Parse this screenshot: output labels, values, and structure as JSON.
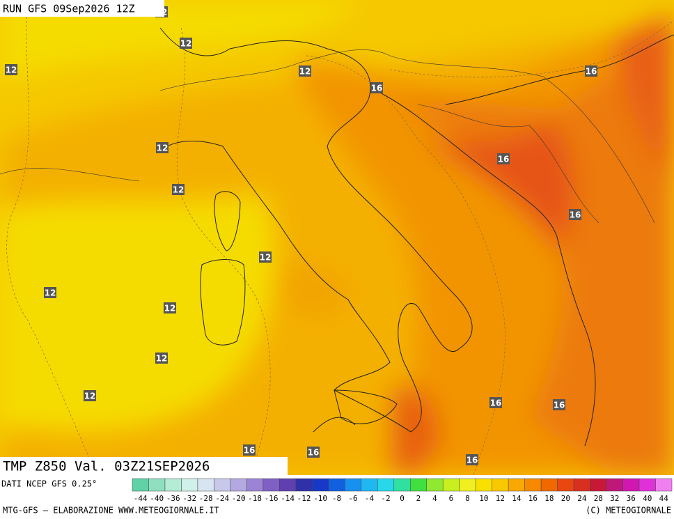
{
  "header": {
    "run": "RUN GFS 09Sep2026 12Z"
  },
  "map": {
    "contour_labels": [
      12,
      12,
      12,
      12,
      16,
      16,
      12,
      16,
      12,
      16,
      12,
      12,
      12,
      12,
      12,
      16,
      16,
      16,
      16,
      16
    ]
  },
  "panel": {
    "title": "TMP Z850 Val. 03Z21SEP2026",
    "source": "DATI NCEP GFS 0.25°"
  },
  "colorbar": {
    "labels": [
      -44,
      -40,
      -36,
      -32,
      -28,
      -24,
      -20,
      -18,
      -16,
      -14,
      -12,
      -10,
      -8,
      -6,
      -4,
      -2,
      0,
      2,
      4,
      6,
      8,
      10,
      12,
      14,
      16,
      18,
      20,
      24,
      28,
      32,
      36,
      40,
      44
    ],
    "colors": [
      "#5fd3a6",
      "#8fe0c0",
      "#b4ecd6",
      "#d0f0ea",
      "#d8e4f0",
      "#c8c8ea",
      "#b4a8e0",
      "#9c84d4",
      "#8060c4",
      "#6040b0",
      "#3030a8",
      "#1838c8",
      "#1060e0",
      "#1890f0",
      "#20b8f0",
      "#28d8e8",
      "#30e0a0",
      "#40e040",
      "#90e830",
      "#c8f020",
      "#f0f020",
      "#f8e000",
      "#f8c800",
      "#f8a800",
      "#f88800",
      "#f06800",
      "#e84810",
      "#d83020",
      "#c81838",
      "#c01878",
      "#d018b0",
      "#e030d8",
      "#f080f0"
    ]
  },
  "footer": {
    "left": "MTG-GFS – ELABORAZIONE WWW.METEOGIORNALE.IT",
    "right": "(C) METEOGIORNALE"
  }
}
